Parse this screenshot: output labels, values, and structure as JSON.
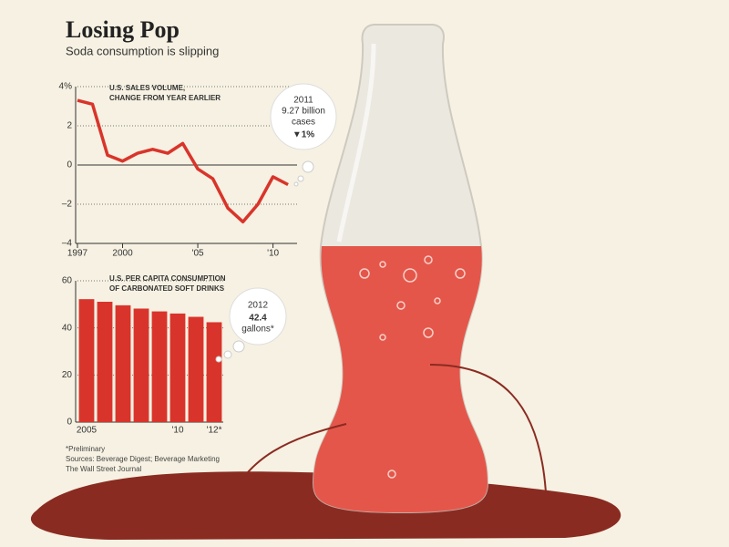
{
  "title": "Losing Pop",
  "subtitle": "Soda consumption is slipping",
  "notes": [
    "*Preliminary",
    "Sources: Beverage Digest; Beverage Marketing",
    "The Wall Street Journal"
  ],
  "chart_data": [
    {
      "type": "line",
      "title": [
        "U.S. SALES VOLUME,",
        "CHANGE FROM YEAR EARLIER"
      ],
      "x": [
        1997,
        1998,
        1999,
        2000,
        2001,
        2002,
        2003,
        2004,
        2005,
        2006,
        2007,
        2008,
        2009,
        2010,
        2011
      ],
      "values": [
        3.3,
        3.1,
        0.5,
        0.2,
        0.6,
        0.8,
        0.6,
        1.1,
        -0.2,
        -0.7,
        -2.2,
        -2.9,
        -2.0,
        -0.6,
        -1.0
      ],
      "color": "#d9342b",
      "xlim": [
        1997,
        2011.6
      ],
      "xticks": [
        1997,
        2000,
        {
          "value": 2005,
          "label": "'05"
        },
        {
          "value": 2010,
          "label": "'10"
        }
      ],
      "ylim": [
        -4,
        4
      ],
      "yticks": [
        {
          "value": 4,
          "label": "4%"
        },
        2,
        0,
        {
          "value": -2,
          "label": "–2"
        },
        {
          "value": -4,
          "label": "–4"
        }
      ],
      "grid": true,
      "annotation": [
        "2011",
        "9.27 billion",
        "cases",
        "▼1%"
      ]
    },
    {
      "type": "bar",
      "title": [
        "U.S. PER CAPITA CONSUMPTION",
        "OF CARBONATED SOFT DRINKS"
      ],
      "categories": [
        "2005",
        null,
        null,
        null,
        null,
        "'10",
        null,
        "'12*"
      ],
      "values": [
        52.2,
        51.1,
        49.6,
        48.2,
        47.0,
        46.1,
        44.7,
        42.4
      ],
      "color": "#d9342b",
      "ylim": [
        0,
        60
      ],
      "yticks": [
        0,
        20,
        40,
        60
      ],
      "grid": true,
      "annotation": [
        "2012",
        "42.4",
        "gallons*"
      ]
    }
  ]
}
